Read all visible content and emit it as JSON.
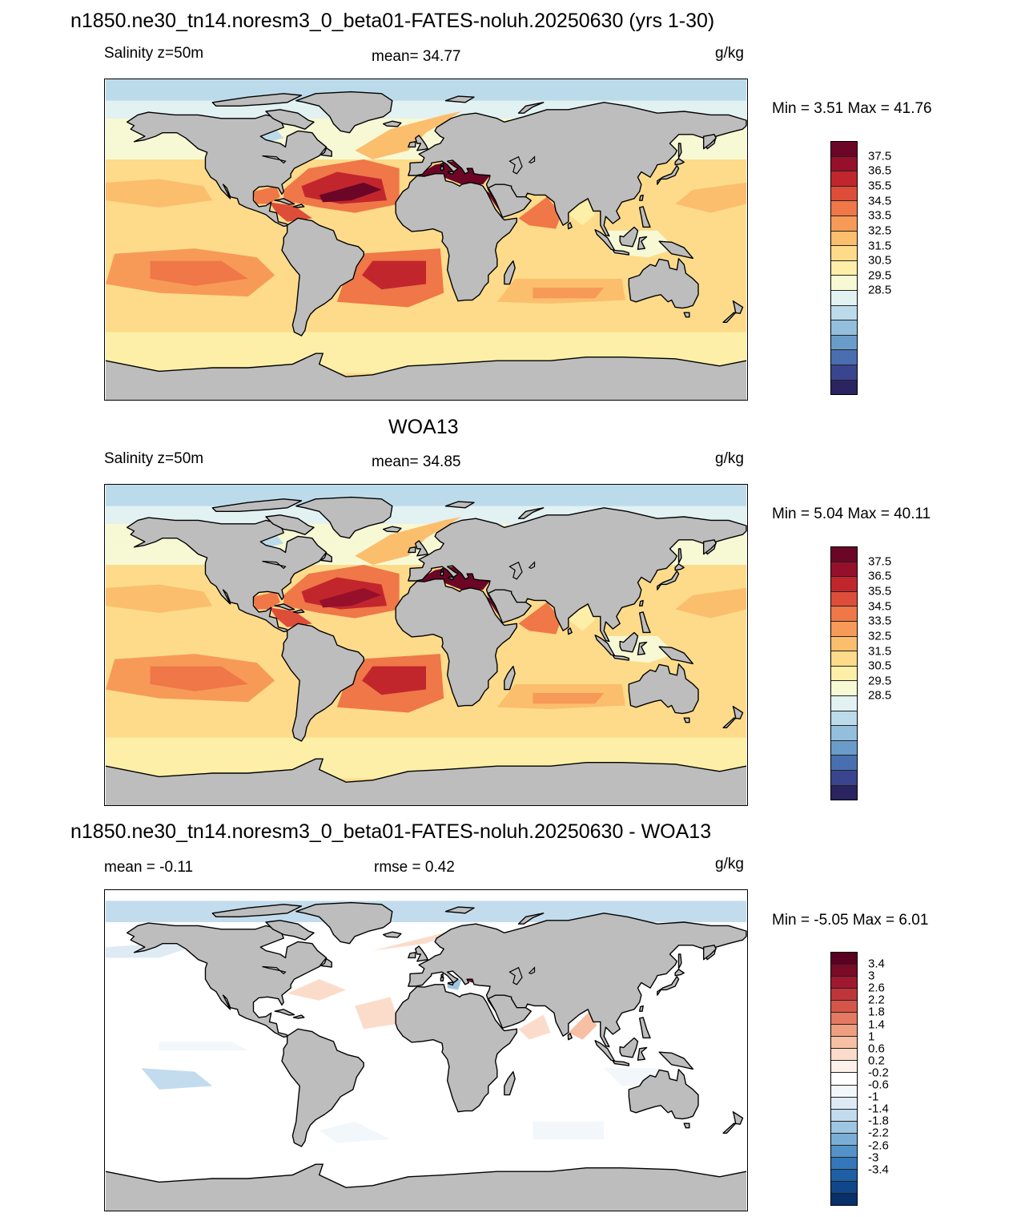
{
  "figure": {
    "title": "n1850.ne30_tn14.noresm3_0_beta01-FATES-noluh.20250630 (yrs 1-30)"
  },
  "colors": {
    "land": "#bdbdbd",
    "salinity_scale": [
      "#2a2461",
      "#3a4590",
      "#4a6fb0",
      "#6a9cc9",
      "#93bfdc",
      "#bcdbea",
      "#e2f1f2",
      "#f7f9d5",
      "#fdefa7",
      "#fddb8a",
      "#fbbe6d",
      "#f79a58",
      "#ef7748",
      "#de4d3a",
      "#c2262d",
      "#97102b",
      "#6b0626"
    ],
    "diff_scale": [
      "#08306b",
      "#10478b",
      "#1e5fa5",
      "#3478bb",
      "#5493c8",
      "#7aaed6",
      "#9ec6e2",
      "#c2dcee",
      "#deebf5",
      "#f2f7fb",
      "#ffffff",
      "#fdf1ea",
      "#fbdcca",
      "#f7bfa3",
      "#f09e80",
      "#e57961",
      "#d65549",
      "#c03539",
      "#a01830",
      "#7a0b26",
      "#5a0020"
    ]
  },
  "panels": [
    {
      "label": "Salinity z=50m",
      "mean": "mean=  34.77",
      "units": "g/kg",
      "minmax": "Min =   3.51 Max =  41.76",
      "colorbar_labels": [
        "37.5",
        "36.5",
        "35.5",
        "34.5",
        "33.5",
        "32.5",
        "31.5",
        "30.5",
        "29.5",
        "28.5"
      ],
      "ocean_level": 0.55,
      "atlantic_max": 0.98
    },
    {
      "title": "WOA13",
      "label": "Salinity z=50m",
      "mean": "mean=  34.85",
      "units": "g/kg",
      "minmax": "Min =   5.04 Max =  40.11",
      "colorbar_labels": [
        "37.5",
        "36.5",
        "35.5",
        "34.5",
        "33.5",
        "32.5",
        "31.5",
        "30.5",
        "29.5",
        "28.5"
      ],
      "ocean_level": 0.57,
      "atlantic_max": 0.9
    },
    {
      "title": "n1850.ne30_tn14.noresm3_0_beta01-FATES-noluh.20250630 - WOA13",
      "mean": "mean =  -0.11",
      "rmse": "rmse =   0.42",
      "units": "g/kg",
      "minmax": "Min =  -5.05 Max =   6.01",
      "colorbar_labels": [
        "3.4",
        "3",
        "2.6",
        "2.2",
        "1.8",
        "1.4",
        "1",
        "0.6",
        "0.2",
        "-0.2",
        "-0.6",
        "-1",
        "-1.4",
        "-1.8",
        "-2.2",
        "-2.6",
        "-3",
        "-3.4"
      ]
    }
  ]
}
